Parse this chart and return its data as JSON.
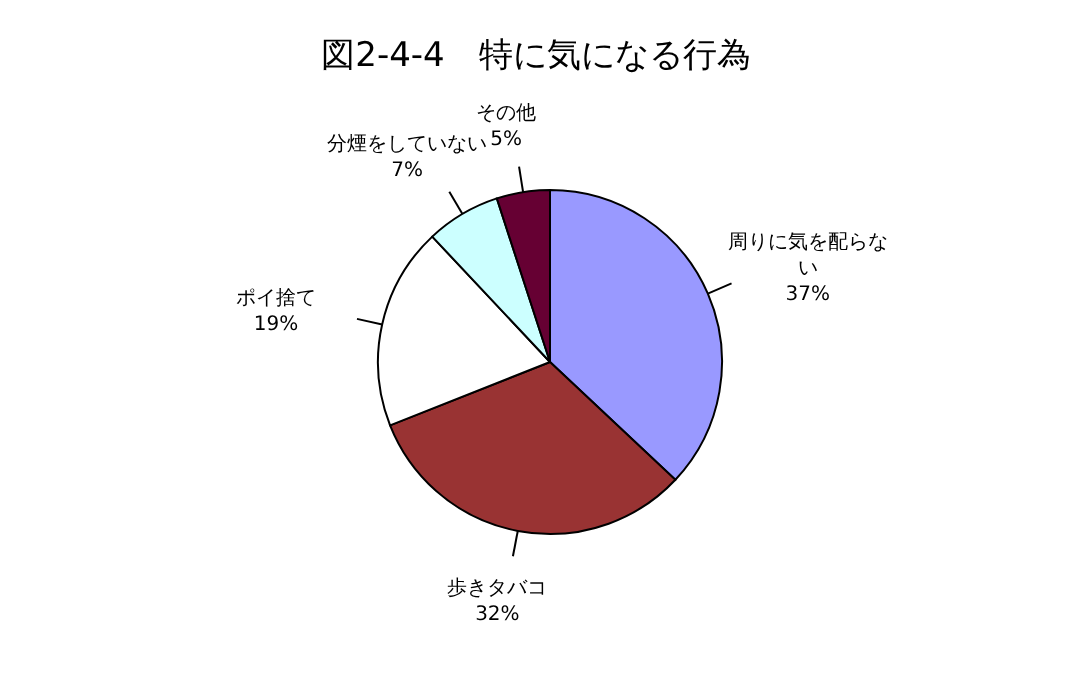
{
  "chart_data": {
    "type": "pie",
    "title": "図2-4-4　特に気になる行為",
    "categories": [
      "周りに気を配らない",
      "歩きタバコ",
      "ポイ捨て",
      "分煙をしていない",
      "その他"
    ],
    "values": [
      37,
      32,
      19,
      7,
      5
    ],
    "colors": [
      "#9999ff",
      "#993333",
      "#ffffff",
      "#ccffff",
      "#660033"
    ],
    "value_labels": [
      "37%",
      "32%",
      "19%",
      "7%",
      "5%"
    ],
    "legend": false
  }
}
